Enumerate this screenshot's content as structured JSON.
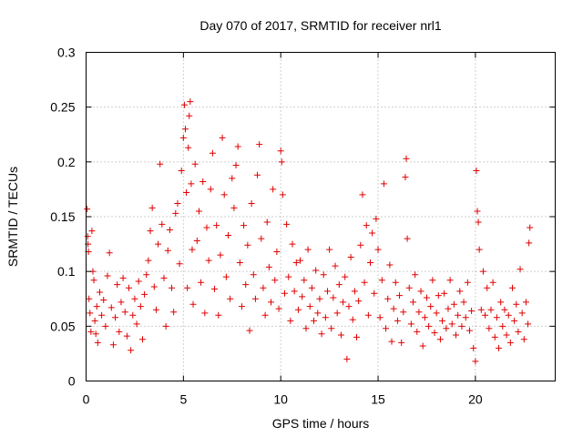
{
  "chart_data": {
    "type": "scatter",
    "title": "Day 070 of 2017, SRMTID for receiver nrl1",
    "xlabel": "GPS time / hours",
    "ylabel": "SRMTID / TECUs",
    "xlim": [
      0,
      24.1
    ],
    "ylim": [
      0,
      0.3
    ],
    "xticks": [
      0,
      5,
      10,
      15,
      20
    ],
    "xtick_labels": [
      "0",
      "5",
      "10",
      "15",
      "20"
    ],
    "yticks": [
      0,
      0.05,
      0.1,
      0.15,
      0.2,
      0.25,
      0.3
    ],
    "ytick_labels": [
      "0",
      "0.05",
      "0.1",
      "0.15",
      "0.2",
      "0.25",
      "0.3"
    ],
    "grid": true,
    "marker": "plus",
    "color": "#e00000",
    "series": [
      {
        "name": "nrl1",
        "points": [
          [
            0.05,
            0.157
          ],
          [
            0.08,
            0.132
          ],
          [
            0.1,
            0.125
          ],
          [
            0.12,
            0.118
          ],
          [
            0.15,
            0.075
          ],
          [
            0.2,
            0.062
          ],
          [
            0.25,
            0.045
          ],
          [
            0.3,
            0.137
          ],
          [
            0.35,
            0.1
          ],
          [
            0.4,
            0.092
          ],
          [
            0.45,
            0.055
          ],
          [
            0.5,
            0.043
          ],
          [
            0.55,
            0.068
          ],
          [
            0.6,
            0.035
          ],
          [
            0.7,
            0.081
          ],
          [
            0.8,
            0.06
          ],
          [
            0.9,
            0.074
          ],
          [
            1.0,
            0.05
          ],
          [
            1.1,
            0.096
          ],
          [
            1.2,
            0.117
          ],
          [
            1.3,
            0.067
          ],
          [
            1.4,
            0.033
          ],
          [
            1.5,
            0.058
          ],
          [
            1.6,
            0.088
          ],
          [
            1.7,
            0.045
          ],
          [
            1.8,
            0.072
          ],
          [
            1.9,
            0.094
          ],
          [
            2.0,
            0.063
          ],
          [
            2.1,
            0.041
          ],
          [
            2.2,
            0.085
          ],
          [
            2.3,
            0.028
          ],
          [
            2.4,
            0.06
          ],
          [
            2.5,
            0.075
          ],
          [
            2.6,
            0.052
          ],
          [
            2.7,
            0.091
          ],
          [
            2.8,
            0.068
          ],
          [
            2.9,
            0.038
          ],
          [
            3.0,
            0.079
          ],
          [
            3.1,
            0.097
          ],
          [
            3.2,
            0.11
          ],
          [
            3.3,
            0.137
          ],
          [
            3.4,
            0.158
          ],
          [
            3.5,
            0.086
          ],
          [
            3.6,
            0.065
          ],
          [
            3.7,
            0.125
          ],
          [
            3.8,
            0.198
          ],
          [
            3.9,
            0.143
          ],
          [
            4.0,
            0.094
          ],
          [
            4.1,
            0.05
          ],
          [
            4.2,
            0.119
          ],
          [
            4.3,
            0.138
          ],
          [
            4.4,
            0.085
          ],
          [
            4.5,
            0.063
          ],
          [
            4.6,
            0.153
          ],
          [
            4.7,
            0.162
          ],
          [
            4.8,
            0.107
          ],
          [
            4.9,
            0.192
          ],
          [
            5.0,
            0.222
          ],
          [
            5.05,
            0.252
          ],
          [
            5.1,
            0.23
          ],
          [
            5.15,
            0.172
          ],
          [
            5.2,
            0.085
          ],
          [
            5.25,
            0.213
          ],
          [
            5.3,
            0.242
          ],
          [
            5.35,
            0.255
          ],
          [
            5.4,
            0.18
          ],
          [
            5.45,
            0.12
          ],
          [
            5.5,
            0.07
          ],
          [
            5.6,
            0.198
          ],
          [
            5.7,
            0.128
          ],
          [
            5.8,
            0.155
          ],
          [
            5.9,
            0.09
          ],
          [
            6.0,
            0.182
          ],
          [
            6.1,
            0.062
          ],
          [
            6.2,
            0.14
          ],
          [
            6.3,
            0.11
          ],
          [
            6.4,
            0.175
          ],
          [
            6.5,
            0.208
          ],
          [
            6.6,
            0.084
          ],
          [
            6.7,
            0.142
          ],
          [
            6.8,
            0.06
          ],
          [
            6.9,
            0.115
          ],
          [
            7.0,
            0.222
          ],
          [
            7.1,
            0.17
          ],
          [
            7.2,
            0.095
          ],
          [
            7.3,
            0.133
          ],
          [
            7.4,
            0.075
          ],
          [
            7.5,
            0.185
          ],
          [
            7.6,
            0.158
          ],
          [
            7.7,
            0.197
          ],
          [
            7.8,
            0.214
          ],
          [
            7.9,
            0.108
          ],
          [
            8.0,
            0.068
          ],
          [
            8.1,
            0.142
          ],
          [
            8.2,
            0.088
          ],
          [
            8.3,
            0.124
          ],
          [
            8.4,
            0.046
          ],
          [
            8.5,
            0.162
          ],
          [
            8.6,
            0.097
          ],
          [
            8.7,
            0.075
          ],
          [
            8.8,
            0.188
          ],
          [
            8.9,
            0.216
          ],
          [
            9.0,
            0.13
          ],
          [
            9.1,
            0.085
          ],
          [
            9.2,
            0.06
          ],
          [
            9.3,
            0.145
          ],
          [
            9.4,
            0.104
          ],
          [
            9.5,
            0.072
          ],
          [
            9.6,
            0.175
          ],
          [
            9.7,
            0.092
          ],
          [
            9.8,
            0.118
          ],
          [
            9.9,
            0.066
          ],
          [
            10.0,
            0.21
          ],
          [
            10.05,
            0.2
          ],
          [
            10.1,
            0.17
          ],
          [
            10.2,
            0.08
          ],
          [
            10.3,
            0.143
          ],
          [
            10.4,
            0.095
          ],
          [
            10.5,
            0.055
          ],
          [
            10.6,
            0.125
          ],
          [
            10.7,
            0.082
          ],
          [
            10.8,
            0.108
          ],
          [
            10.9,
            0.065
          ],
          [
            11.0,
            0.11
          ],
          [
            11.1,
            0.077
          ],
          [
            11.2,
            0.092
          ],
          [
            11.3,
            0.048
          ],
          [
            11.4,
            0.12
          ],
          [
            11.5,
            0.068
          ],
          [
            11.6,
            0.085
          ],
          [
            11.7,
            0.055
          ],
          [
            11.8,
            0.101
          ],
          [
            11.9,
            0.062
          ],
          [
            12.0,
            0.075
          ],
          [
            12.1,
            0.043
          ],
          [
            12.2,
            0.097
          ],
          [
            12.3,
            0.058
          ],
          [
            12.4,
            0.082
          ],
          [
            12.5,
            0.12
          ],
          [
            12.6,
            0.048
          ],
          [
            12.7,
            0.076
          ],
          [
            12.8,
            0.105
          ],
          [
            12.9,
            0.062
          ],
          [
            13.0,
            0.088
          ],
          [
            13.1,
            0.042
          ],
          [
            13.2,
            0.072
          ],
          [
            13.3,
            0.095
          ],
          [
            13.4,
            0.02
          ],
          [
            13.5,
            0.068
          ],
          [
            13.6,
            0.113
          ],
          [
            13.7,
            0.056
          ],
          [
            13.8,
            0.082
          ],
          [
            13.9,
            0.04
          ],
          [
            14.0,
            0.073
          ],
          [
            14.1,
            0.124
          ],
          [
            14.2,
            0.17
          ],
          [
            14.3,
            0.09
          ],
          [
            14.4,
            0.142
          ],
          [
            14.5,
            0.06
          ],
          [
            14.6,
            0.108
          ],
          [
            14.7,
            0.135
          ],
          [
            14.8,
            0.08
          ],
          [
            14.9,
            0.148
          ],
          [
            15.0,
            0.12
          ],
          [
            15.1,
            0.058
          ],
          [
            15.2,
            0.092
          ],
          [
            15.3,
            0.18
          ],
          [
            15.4,
            0.048
          ],
          [
            15.5,
            0.075
          ],
          [
            15.6,
            0.106
          ],
          [
            15.7,
            0.036
          ],
          [
            15.8,
            0.066
          ],
          [
            15.9,
            0.09
          ],
          [
            16.0,
            0.055
          ],
          [
            16.1,
            0.078
          ],
          [
            16.2,
            0.035
          ],
          [
            16.3,
            0.063
          ],
          [
            16.4,
            0.186
          ],
          [
            16.45,
            0.203
          ],
          [
            16.5,
            0.13
          ],
          [
            16.6,
            0.085
          ],
          [
            16.7,
            0.052
          ],
          [
            16.8,
            0.072
          ],
          [
            16.9,
            0.097
          ],
          [
            17.0,
            0.045
          ],
          [
            17.1,
            0.063
          ],
          [
            17.2,
            0.082
          ],
          [
            17.3,
            0.032
          ],
          [
            17.4,
            0.058
          ],
          [
            17.5,
            0.076
          ],
          [
            17.6,
            0.05
          ],
          [
            17.7,
            0.068
          ],
          [
            17.8,
            0.092
          ],
          [
            17.9,
            0.044
          ],
          [
            18.0,
            0.062
          ],
          [
            18.1,
            0.078
          ],
          [
            18.2,
            0.038
          ],
          [
            18.3,
            0.055
          ],
          [
            18.4,
            0.08
          ],
          [
            18.5,
            0.048
          ],
          [
            18.6,
            0.066
          ],
          [
            18.7,
            0.092
          ],
          [
            18.8,
            0.052
          ],
          [
            18.9,
            0.07
          ],
          [
            19.0,
            0.042
          ],
          [
            19.1,
            0.06
          ],
          [
            19.2,
            0.082
          ],
          [
            19.3,
            0.05
          ],
          [
            19.4,
            0.072
          ],
          [
            19.5,
            0.058
          ],
          [
            19.6,
            0.09
          ],
          [
            19.7,
            0.046
          ],
          [
            19.8,
            0.064
          ],
          [
            19.9,
            0.03
          ],
          [
            20.0,
            0.018
          ],
          [
            20.05,
            0.192
          ],
          [
            20.1,
            0.155
          ],
          [
            20.15,
            0.145
          ],
          [
            20.2,
            0.12
          ],
          [
            20.3,
            0.065
          ],
          [
            20.4,
            0.1
          ],
          [
            20.5,
            0.06
          ],
          [
            20.6,
            0.085
          ],
          [
            20.7,
            0.048
          ],
          [
            20.8,
            0.065
          ],
          [
            20.9,
            0.09
          ],
          [
            21.0,
            0.04
          ],
          [
            21.1,
            0.058
          ],
          [
            21.2,
            0.03
          ],
          [
            21.3,
            0.072
          ],
          [
            21.4,
            0.05
          ],
          [
            21.5,
            0.065
          ],
          [
            21.6,
            0.042
          ],
          [
            21.7,
            0.06
          ],
          [
            21.8,
            0.035
          ],
          [
            21.9,
            0.085
          ],
          [
            22.0,
            0.055
          ],
          [
            22.1,
            0.07
          ],
          [
            22.2,
            0.045
          ],
          [
            22.3,
            0.102
          ],
          [
            22.4,
            0.062
          ],
          [
            22.5,
            0.038
          ],
          [
            22.6,
            0.072
          ],
          [
            22.7,
            0.052
          ],
          [
            22.75,
            0.126
          ],
          [
            22.8,
            0.14
          ]
        ]
      }
    ]
  }
}
